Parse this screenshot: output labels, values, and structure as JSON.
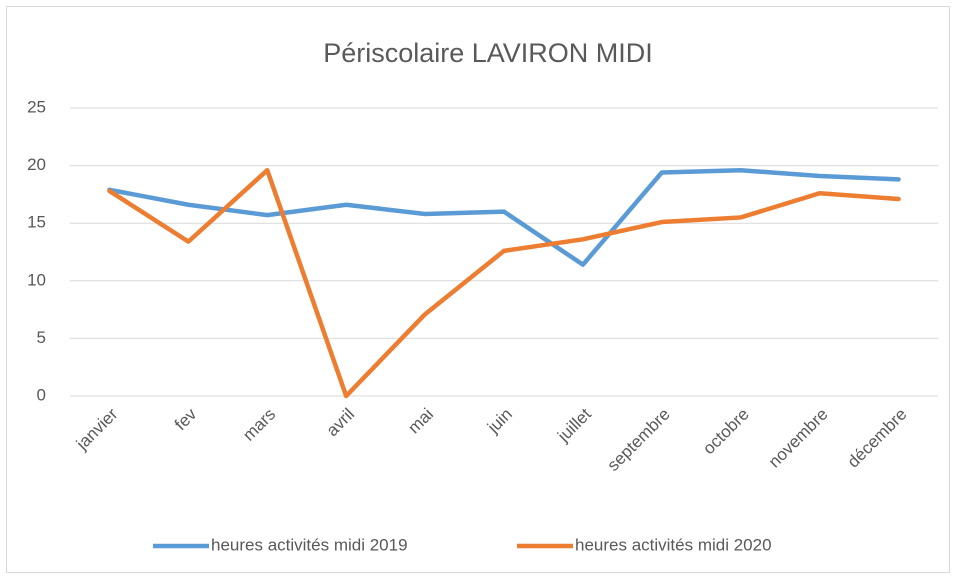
{
  "chart_data": {
    "type": "line",
    "title": "Périscolaire LAVIRON MIDI",
    "categories": [
      "janvier",
      "fev",
      "mars",
      "avril",
      "mai",
      "juin",
      "juillet",
      "septembre",
      "octobre",
      "novembre",
      "décembre"
    ],
    "series": [
      {
        "name": "heures activités midi 2019",
        "color": "#5b9bd5",
        "values": [
          17.9,
          16.6,
          15.7,
          16.6,
          15.8,
          16.0,
          11.4,
          19.4,
          19.6,
          19.1,
          18.8
        ]
      },
      {
        "name": "heures activités midi 2020",
        "color": "#ed7d31",
        "values": [
          17.8,
          13.4,
          19.6,
          0,
          7.1,
          12.6,
          13.6,
          15.1,
          15.5,
          17.6,
          17.1
        ]
      }
    ],
    "ylim": [
      0,
      25
    ],
    "yticks": [
      0,
      5,
      10,
      15,
      20,
      25
    ],
    "grid": true,
    "legend": "bottom"
  }
}
